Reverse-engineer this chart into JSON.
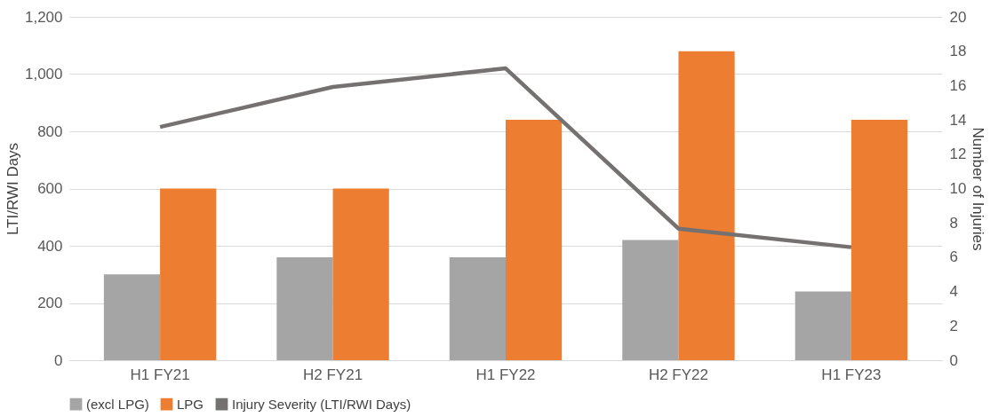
{
  "chart_data": {
    "type": "bar",
    "ylabel": "LTI/RWI Days",
    "y2label": "Number of Injuries",
    "categories": [
      "H1 FY21",
      "H2 FY21",
      "H1 FY22",
      "H2 FY22",
      "H1 FY23"
    ],
    "series": [
      {
        "name": "(excl LPG)",
        "color": "#a5a5a5",
        "axis": "y2",
        "values": [
          5,
          6,
          6,
          7,
          4
        ]
      },
      {
        "name": "LPG",
        "color": "#ed7d31",
        "axis": "y2",
        "values": [
          10,
          10,
          14,
          18,
          14
        ]
      },
      {
        "name": "Injury Severity (LTI/RWI Days)",
        "type": "line",
        "color": "#767171",
        "values": [
          815,
          955,
          1020,
          460,
          395
        ]
      }
    ],
    "ylim": [
      0,
      1200
    ],
    "yticks": [
      0,
      200,
      400,
      600,
      800,
      {
        "value": 1000,
        "label": "1,000"
      },
      {
        "value": 1200,
        "label": "1,200"
      }
    ],
    "y2lim": [
      0,
      20
    ],
    "y2ticks": [
      0,
      2,
      4,
      6,
      8,
      10,
      12,
      14,
      16,
      18,
      20
    ],
    "grid": "y",
    "legend": "bottom",
    "marker": "none",
    "line_style": "solid"
  }
}
